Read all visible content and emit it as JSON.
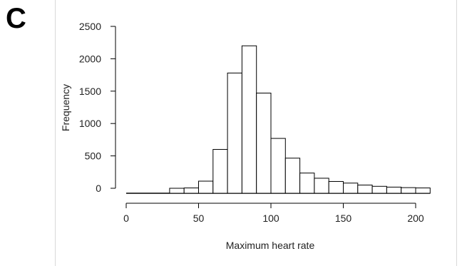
{
  "panel_label": "C",
  "chart_data": {
    "type": "bar",
    "subtype": "histogram",
    "xlabel": "Maximum heart rate",
    "ylabel": "Frequency",
    "xlim": [
      0,
      210
    ],
    "ylim": [
      0,
      2500
    ],
    "x_ticks": [
      0,
      50,
      100,
      150,
      200
    ],
    "y_ticks": [
      0,
      500,
      1000,
      1500,
      2000,
      2500
    ],
    "bin_width": 10,
    "bins": [
      {
        "x0": 30,
        "x1": 40,
        "count": 0
      },
      {
        "x0": 40,
        "x1": 50,
        "count": 5
      },
      {
        "x0": 50,
        "x1": 60,
        "count": 110
      },
      {
        "x0": 60,
        "x1": 70,
        "count": 600
      },
      {
        "x0": 70,
        "x1": 80,
        "count": 1780
      },
      {
        "x0": 80,
        "x1": 90,
        "count": 2200
      },
      {
        "x0": 90,
        "x1": 100,
        "count": 1470
      },
      {
        "x0": 100,
        "x1": 110,
        "count": 770
      },
      {
        "x0": 110,
        "x1": 120,
        "count": 465
      },
      {
        "x0": 120,
        "x1": 130,
        "count": 235
      },
      {
        "x0": 130,
        "x1": 140,
        "count": 155
      },
      {
        "x0": 140,
        "x1": 150,
        "count": 105
      },
      {
        "x0": 150,
        "x1": 160,
        "count": 80
      },
      {
        "x0": 160,
        "x1": 170,
        "count": 50
      },
      {
        "x0": 170,
        "x1": 180,
        "count": 30
      },
      {
        "x0": 180,
        "x1": 190,
        "count": 18
      },
      {
        "x0": 190,
        "x1": 200,
        "count": 10
      },
      {
        "x0": 200,
        "x1": 210,
        "count": 5
      }
    ],
    "grid": false,
    "legend": "none",
    "colors": {
      "bar_fill": "#ffffff",
      "bar_stroke": "#000000",
      "axis": "#000000"
    }
  }
}
